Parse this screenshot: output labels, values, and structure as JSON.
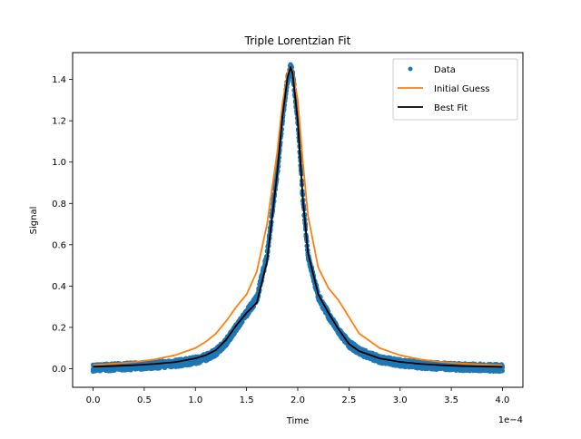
{
  "chart_data": {
    "type": "scatter",
    "title": "Triple Lorentzian Fit",
    "xlabel": "Time",
    "ylabel": "Signal",
    "x_offset_text": "1e−4",
    "xlim": [
      -0.2,
      4.2
    ],
    "ylim": [
      -0.09,
      1.53
    ],
    "grid": false,
    "legend_position": "top-right",
    "x_ticks": [
      0.0,
      0.5,
      1.0,
      1.5,
      2.0,
      2.5,
      3.0,
      3.5,
      4.0
    ],
    "x_tick_labels": [
      "0.0",
      "0.5",
      "1.0",
      "1.5",
      "2.0",
      "2.5",
      "3.0",
      "3.5",
      "4.0"
    ],
    "y_ticks": [
      0.0,
      0.2,
      0.4,
      0.6,
      0.8,
      1.0,
      1.2,
      1.4
    ],
    "y_tick_labels": [
      "0.0",
      "0.2",
      "0.4",
      "0.6",
      "0.8",
      "1.0",
      "1.2",
      "1.4"
    ],
    "colors": {
      "data": "#1f77b4",
      "initial_guess": "#ff7f0e",
      "best_fit": "#000000"
    },
    "series": [
      {
        "name": "Data",
        "style": "points",
        "x": [
          0.0,
          0.2,
          0.4,
          0.6,
          0.8,
          1.0,
          1.1,
          1.2,
          1.3,
          1.4,
          1.5,
          1.6,
          1.7,
          1.8,
          1.85,
          1.9,
          1.93,
          1.95,
          2.0,
          2.05,
          2.1,
          2.2,
          2.3,
          2.4,
          2.5,
          2.6,
          2.8,
          3.0,
          3.2,
          3.4,
          3.6,
          3.8,
          4.0
        ],
        "y": [
          0.004,
          0.008,
          0.012,
          0.018,
          0.025,
          0.04,
          0.055,
          0.08,
          0.13,
          0.2,
          0.27,
          0.34,
          0.55,
          0.95,
          1.2,
          1.4,
          1.46,
          1.43,
          1.2,
          0.82,
          0.55,
          0.35,
          0.26,
          0.18,
          0.12,
          0.085,
          0.045,
          0.028,
          0.018,
          0.012,
          0.008,
          0.006,
          0.004
        ]
      },
      {
        "name": "Initial Guess",
        "style": "line",
        "x": [
          0.0,
          0.2,
          0.4,
          0.6,
          0.8,
          1.0,
          1.1,
          1.2,
          1.3,
          1.4,
          1.5,
          1.6,
          1.7,
          1.8,
          1.85,
          1.9,
          1.93,
          1.95,
          2.0,
          2.05,
          2.1,
          2.2,
          2.3,
          2.4,
          2.5,
          2.6,
          2.8,
          3.0,
          3.2,
          3.4,
          3.6,
          3.8,
          4.0
        ],
        "y": [
          0.018,
          0.024,
          0.032,
          0.045,
          0.065,
          0.1,
          0.13,
          0.17,
          0.23,
          0.3,
          0.36,
          0.47,
          0.7,
          1.05,
          1.28,
          1.43,
          1.46,
          1.44,
          1.3,
          1.0,
          0.74,
          0.49,
          0.39,
          0.33,
          0.25,
          0.17,
          0.1,
          0.065,
          0.045,
          0.033,
          0.025,
          0.02,
          0.017
        ]
      },
      {
        "name": "Best Fit",
        "style": "line",
        "x": [
          0.0,
          0.2,
          0.4,
          0.6,
          0.8,
          1.0,
          1.1,
          1.2,
          1.3,
          1.4,
          1.5,
          1.6,
          1.7,
          1.8,
          1.85,
          1.9,
          1.93,
          1.95,
          2.0,
          2.05,
          2.1,
          2.2,
          2.3,
          2.4,
          2.5,
          2.6,
          2.8,
          3.0,
          3.2,
          3.4,
          3.6,
          3.8,
          4.0
        ],
        "y": [
          0.01,
          0.013,
          0.017,
          0.023,
          0.032,
          0.05,
          0.065,
          0.09,
          0.14,
          0.21,
          0.27,
          0.32,
          0.52,
          0.95,
          1.22,
          1.41,
          1.46,
          1.43,
          1.2,
          0.82,
          0.56,
          0.36,
          0.27,
          0.19,
          0.12,
          0.085,
          0.05,
          0.033,
          0.023,
          0.017,
          0.013,
          0.011,
          0.009
        ]
      }
    ]
  }
}
